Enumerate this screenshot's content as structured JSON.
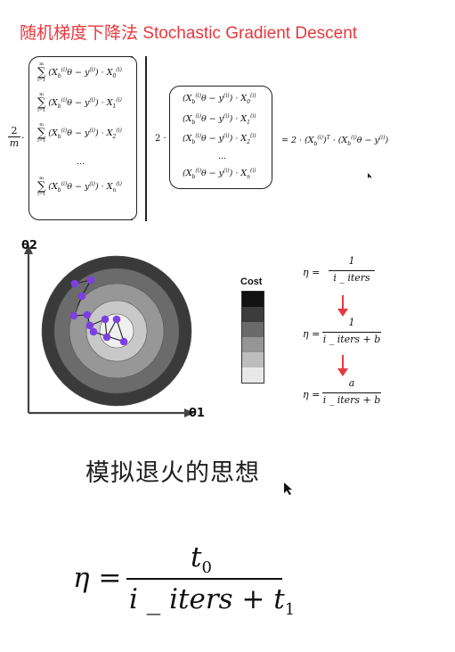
{
  "title": "随机梯度下降法 Stochastic Gradient Descent",
  "gradient": {
    "scalar_left": "2",
    "scalar_left_den": "m",
    "dot": "·",
    "sum_rows": [
      "(X_b^{(i)}θ − y^{(i)}) · X_0^{(i)}",
      "(X_b^{(i)}θ − y^{(i)}) · X_1^{(i)}",
      "(X_b^{(i)}θ − y^{(i)}) · X_2^{(i)}",
      "...",
      "(X_b^{(i)}θ − y^{(i)}) · X_n^{(i)}"
    ],
    "sum_symbol": "∑",
    "sum_top": "m",
    "sum_bottom": "i=1",
    "scalar_mid": "2 ·",
    "vec_rows": [
      "(X_b^{(i)}θ − y^{(i)}) · X_0^{(i)}",
      "(X_b^{(i)}θ − y^{(i)}) · X_1^{(i)}",
      "(X_b^{(i)}θ − y^{(i)}) · X_2^{(i)}",
      "...",
      "(X_b^{(i)}θ − y^{(i)}) · X_n^{(i)}"
    ],
    "result": "= 2 · (X_b^{(i)})^T · (X_b^{(i)}θ − y^{(i)})"
  },
  "contour": {
    "y_axis_label": "θ2",
    "x_axis_label": "θ1",
    "legend_title": "Cost",
    "legend_colors": [
      "#111111",
      "#3c3c3c",
      "#6a6a6a",
      "#959595",
      "#bdbdbd",
      "#e8e8e8"
    ],
    "ring_colors": [
      "#3a3a3a",
      "#6b6b6b",
      "#979797",
      "#c8c8c8",
      "#efefef"
    ],
    "point_color": "#7b3fe4",
    "arrow_color": "#e8383d"
  },
  "learning_rates": [
    {
      "lhs": "η =",
      "num": "1",
      "den": "i _ iters"
    },
    {
      "lhs": "η =",
      "num": "1",
      "den": "i _ iters + b"
    },
    {
      "lhs": "η =",
      "num": "a",
      "den": "i _ iters + b"
    }
  ],
  "annealing": "模拟退火的思想",
  "final_formula": {
    "lhs": "η =",
    "num": "t0",
    "den": "i _ iters + t1"
  }
}
